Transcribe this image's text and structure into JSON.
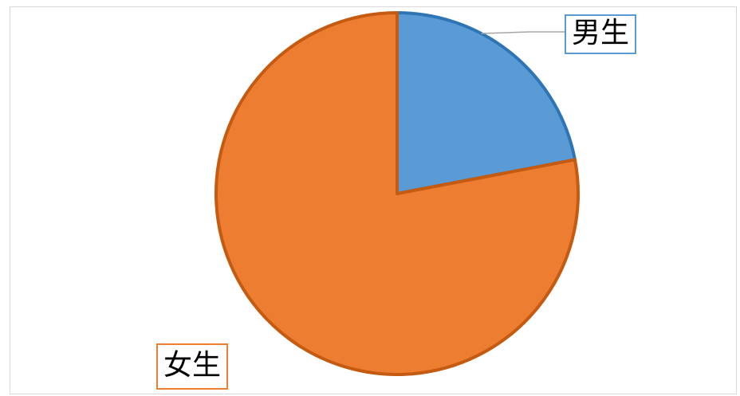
{
  "chart_data": {
    "type": "pie",
    "categories": [
      "男生",
      "女生"
    ],
    "values": [
      22,
      78
    ],
    "colors": [
      "#5b9bd5",
      "#ed7d31"
    ],
    "edge_colors": [
      "#2e75b6",
      "#c55a11"
    ],
    "labels": [
      "男生",
      "女生"
    ],
    "legend": "none"
  }
}
